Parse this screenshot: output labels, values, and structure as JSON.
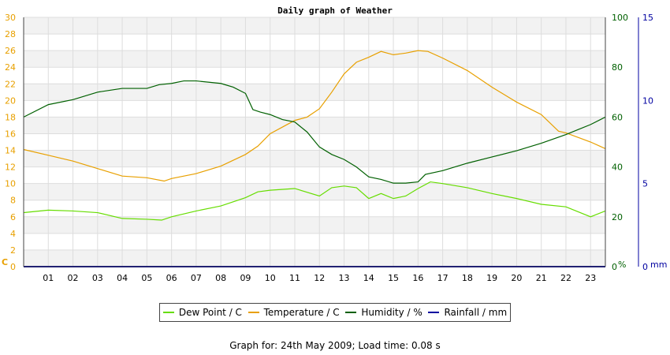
{
  "chart_data": {
    "type": "line",
    "title": "Daily graph of Weather",
    "x_ticks": [
      "01",
      "02",
      "03",
      "04",
      "05",
      "06",
      "07",
      "08",
      "09",
      "10",
      "11",
      "12",
      "13",
      "14",
      "15",
      "16",
      "17",
      "18",
      "19",
      "20",
      "21",
      "22",
      "23"
    ],
    "xlim": [
      0,
      23.6
    ],
    "axes": {
      "left": {
        "unit_label": "C",
        "ticks": [
          "0",
          "2",
          "4",
          "6",
          "8",
          "10",
          "12",
          "14",
          "16",
          "18",
          "20",
          "22",
          "24",
          "26",
          "28",
          "30"
        ],
        "ylim": [
          0,
          30
        ],
        "color": "#e8a000"
      },
      "right1": {
        "unit_label": "%",
        "ticks": [
          "0",
          "20",
          "40",
          "60",
          "80",
          "100"
        ],
        "ylim": [
          0,
          100
        ],
        "color": "#006000"
      },
      "right2": {
        "unit_label": "mm",
        "ticks": [
          "0",
          "5",
          "10",
          "15"
        ],
        "ylim": [
          0,
          15
        ],
        "color": "#0000a0"
      }
    },
    "grid": true,
    "legend_position": "bottom",
    "series": [
      {
        "name": "Dew Point / C",
        "axis": "left",
        "color": "#66dd00",
        "x": [
          0,
          1,
          2,
          3,
          4,
          5,
          5.6,
          6,
          7,
          8,
          9,
          9.5,
          10,
          11,
          12,
          12.5,
          13,
          13.5,
          14,
          14.5,
          15,
          15.5,
          16,
          16.5,
          17,
          18,
          19,
          20,
          21,
          22,
          23,
          23.6
        ],
        "y": [
          6.5,
          6.8,
          6.7,
          6.5,
          5.8,
          5.7,
          5.6,
          6,
          6.7,
          7.3,
          8.3,
          9,
          9.2,
          9.4,
          8.5,
          9.5,
          9.7,
          9.5,
          8.2,
          8.8,
          8.2,
          8.5,
          9.4,
          10.2,
          10,
          9.5,
          8.8,
          8.2,
          7.5,
          7.2,
          6,
          6.7
        ]
      },
      {
        "name": "Temperature / C",
        "axis": "left",
        "color": "#e8a000",
        "x": [
          0,
          1,
          2,
          3,
          4,
          5,
          5.7,
          6,
          7,
          8,
          9,
          9.5,
          10,
          10.5,
          11,
          11.5,
          12,
          12.5,
          13,
          13.5,
          14,
          14.5,
          15,
          15.5,
          16,
          16.4,
          17,
          18,
          19,
          20,
          21,
          21.7,
          22,
          23,
          23.6
        ],
        "y": [
          14.1,
          13.4,
          12.7,
          11.8,
          10.9,
          10.7,
          10.3,
          10.6,
          11.2,
          12.1,
          13.5,
          14.5,
          16,
          16.8,
          17.6,
          18,
          19,
          21,
          23.2,
          24.6,
          25.2,
          25.9,
          25.5,
          25.7,
          26,
          25.9,
          25.1,
          23.6,
          21.6,
          19.8,
          18.3,
          16.3,
          16.1,
          15,
          14.2
        ]
      },
      {
        "name": "Humidity / %",
        "axis": "right1",
        "color": "#006000",
        "x": [
          0,
          1,
          2,
          3,
          4,
          5,
          5.5,
          6,
          6.5,
          7,
          8,
          8.5,
          9,
          9.3,
          9.6,
          10,
          10.5,
          11,
          11.5,
          12,
          12.5,
          13,
          13.5,
          14,
          14.5,
          15,
          15.5,
          16,
          16.3,
          17,
          18,
          19,
          20,
          21,
          22,
          22.5,
          23,
          23.6
        ],
        "y": [
          60,
          65,
          67,
          70,
          71.5,
          71.5,
          73,
          73.5,
          74.5,
          74.5,
          73.5,
          72,
          69.5,
          63,
          62,
          61,
          59,
          58,
          54,
          48,
          45,
          43,
          40,
          36,
          35,
          33.5,
          33.5,
          34,
          37,
          38.5,
          41.5,
          44,
          46.5,
          49.5,
          53,
          55,
          57,
          60
        ]
      },
      {
        "name": "Rainfall / mm",
        "axis": "right2",
        "color": "#0000a0",
        "x": [
          0,
          23.6
        ],
        "y": [
          0,
          0
        ]
      }
    ]
  },
  "footer": {
    "text": "Graph for: 24th May 2009; Load time: 0.08 s"
  }
}
